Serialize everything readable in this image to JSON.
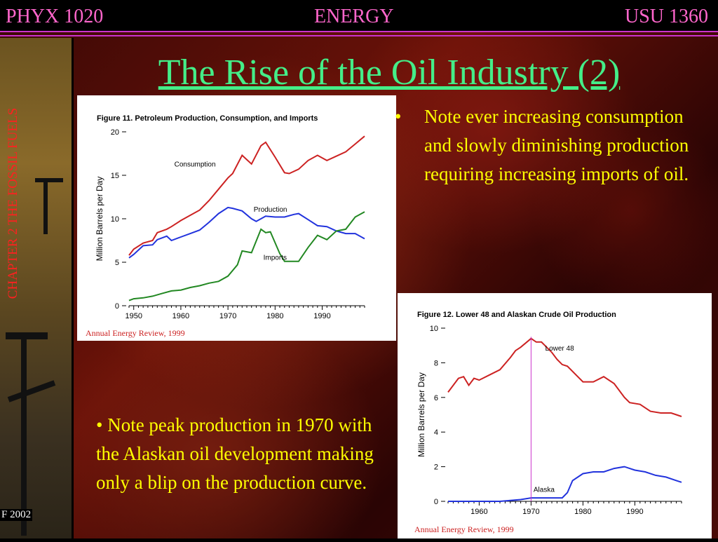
{
  "header": {
    "left": "PHYX 1020",
    "center": "ENERGY",
    "right": "USU 1360"
  },
  "title": "The Rise of the Oil Industry (2)",
  "sidebar": {
    "chapter": "CHAPTER 2 THE FOSSIL FUELS",
    "copyright": "F 2002"
  },
  "bullets": {
    "top": "Note ever increasing consumption and slowly diminishing production requiring increasing imports of oil.",
    "bottom": "• Note peak production in 1970 with the Alaskan oil development making only a blip on the production curve."
  },
  "colors": {
    "header": "#ff66cc",
    "title": "#44ee88",
    "bullet": "#ffff00",
    "chapter": "#ff2020"
  },
  "chart_data": [
    {
      "type": "line",
      "title": "Figure 11.  Petroleum Production, Consumption, and Imports",
      "ylabel": "Million Barrels per Day",
      "xlabel": "",
      "xlim": [
        1949,
        1999
      ],
      "ylim": [
        0,
        20
      ],
      "xticks": [
        "1950",
        "1960",
        "1970",
        "1980",
        "1990"
      ],
      "yticks": [
        "0",
        "5",
        "10",
        "15",
        "20"
      ],
      "grid": false,
      "source": "Annual Energy Review, 1999",
      "series": [
        {
          "name": "Consumption",
          "color": "#cc2222",
          "x": [
            1949,
            1950,
            1952,
            1954,
            1955,
            1957,
            1958,
            1960,
            1962,
            1964,
            1966,
            1968,
            1970,
            1971,
            1973,
            1975,
            1977,
            1978,
            1980,
            1982,
            1983,
            1985,
            1987,
            1989,
            1991,
            1993,
            1995,
            1997,
            1999
          ],
          "y": [
            5.8,
            6.5,
            7.2,
            7.5,
            8.4,
            8.8,
            9.1,
            9.8,
            10.4,
            11.0,
            12.1,
            13.4,
            14.7,
            15.2,
            17.3,
            16.3,
            18.4,
            18.8,
            17.1,
            15.3,
            15.2,
            15.7,
            16.7,
            17.3,
            16.7,
            17.2,
            17.7,
            18.6,
            19.5
          ]
        },
        {
          "name": "Production",
          "color": "#2233dd",
          "x": [
            1949,
            1950,
            1952,
            1954,
            1955,
            1957,
            1958,
            1960,
            1962,
            1964,
            1966,
            1968,
            1970,
            1971,
            1973,
            1975,
            1976,
            1978,
            1980,
            1982,
            1984,
            1985,
            1987,
            1989,
            1991,
            1993,
            1995,
            1997,
            1999
          ],
          "y": [
            5.5,
            5.9,
            6.9,
            7.0,
            7.6,
            8.0,
            7.5,
            7.9,
            8.3,
            8.7,
            9.6,
            10.6,
            11.3,
            11.2,
            10.9,
            10.0,
            9.7,
            10.3,
            10.2,
            10.2,
            10.5,
            10.6,
            9.9,
            9.2,
            9.1,
            8.6,
            8.3,
            8.3,
            7.7
          ]
        },
        {
          "name": "Imports",
          "color": "#228822",
          "x": [
            1949,
            1950,
            1952,
            1954,
            1956,
            1958,
            1960,
            1962,
            1964,
            1966,
            1968,
            1970,
            1972,
            1973,
            1975,
            1977,
            1978,
            1979,
            1981,
            1982,
            1983,
            1985,
            1987,
            1989,
            1991,
            1993,
            1995,
            1997,
            1999
          ],
          "y": [
            0.6,
            0.8,
            0.9,
            1.1,
            1.4,
            1.7,
            1.8,
            2.1,
            2.3,
            2.6,
            2.8,
            3.4,
            4.7,
            6.3,
            6.1,
            8.8,
            8.4,
            8.5,
            6.0,
            5.1,
            5.1,
            5.1,
            6.7,
            8.1,
            7.6,
            8.6,
            8.8,
            10.2,
            10.8
          ]
        }
      ]
    },
    {
      "type": "line",
      "title": "Figure 12.  Lower 48 and Alaskan Crude Oil Production",
      "ylabel": "Million Barrels per Day",
      "xlabel": "",
      "xlim": [
        1954,
        1999
      ],
      "ylim": [
        0,
        10
      ],
      "xticks": [
        "1960",
        "1970",
        "1980",
        "1990"
      ],
      "yticks": [
        "0",
        "2",
        "4",
        "6",
        "8",
        "10"
      ],
      "grid": false,
      "source": "Annual Energy Review, 1999",
      "series": [
        {
          "name": "Lower 48",
          "color": "#cc2222",
          "x": [
            1954,
            1956,
            1957,
            1958,
            1959,
            1960,
            1962,
            1964,
            1966,
            1967,
            1968,
            1970,
            1971,
            1972,
            1973,
            1974,
            1975,
            1976,
            1977,
            1979,
            1980,
            1982,
            1984,
            1986,
            1988,
            1989,
            1991,
            1993,
            1995,
            1997,
            1998,
            1999
          ],
          "y": [
            6.3,
            7.1,
            7.2,
            6.7,
            7.1,
            7.0,
            7.3,
            7.6,
            8.3,
            8.7,
            8.9,
            9.4,
            9.2,
            9.2,
            8.9,
            8.6,
            8.2,
            7.9,
            7.8,
            7.2,
            6.9,
            6.9,
            7.2,
            6.8,
            6.0,
            5.7,
            5.6,
            5.2,
            5.1,
            5.1,
            5.0,
            4.9
          ]
        },
        {
          "name": "Alaska",
          "color": "#2233dd",
          "x": [
            1954,
            1960,
            1964,
            1966,
            1968,
            1970,
            1972,
            1974,
            1976,
            1977,
            1978,
            1980,
            1982,
            1984,
            1986,
            1988,
            1989,
            1990,
            1992,
            1994,
            1996,
            1998,
            1999
          ],
          "y": [
            0.0,
            0.0,
            0.0,
            0.05,
            0.1,
            0.2,
            0.2,
            0.2,
            0.2,
            0.5,
            1.2,
            1.6,
            1.7,
            1.7,
            1.9,
            2.0,
            1.9,
            1.8,
            1.7,
            1.5,
            1.4,
            1.2,
            1.1
          ]
        }
      ]
    }
  ]
}
